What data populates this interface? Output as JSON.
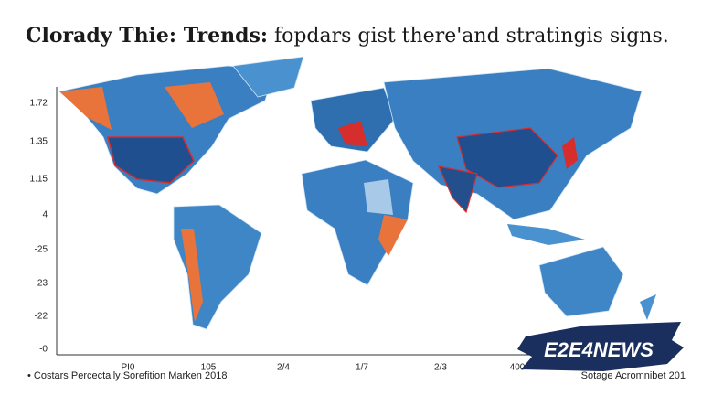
{
  "header": {
    "title_bold": "Clorady Thie: Trends:",
    "title_rest": " fopdars gist there'and stratingis signs."
  },
  "axes": {
    "y_labels": [
      "1.72",
      "1.35",
      "1.15",
      "4",
      "-25",
      "-23",
      "-22",
      "-0"
    ],
    "x_labels": [
      "PI0",
      "105",
      "2/4",
      "1/7",
      "2/3",
      "400"
    ]
  },
  "footer": {
    "note": "• Costars Percectally Sorefition Marken 2018",
    "source": "Sotage Acromnibet 201"
  },
  "logo": {
    "text": "E2E4NEWS"
  }
}
